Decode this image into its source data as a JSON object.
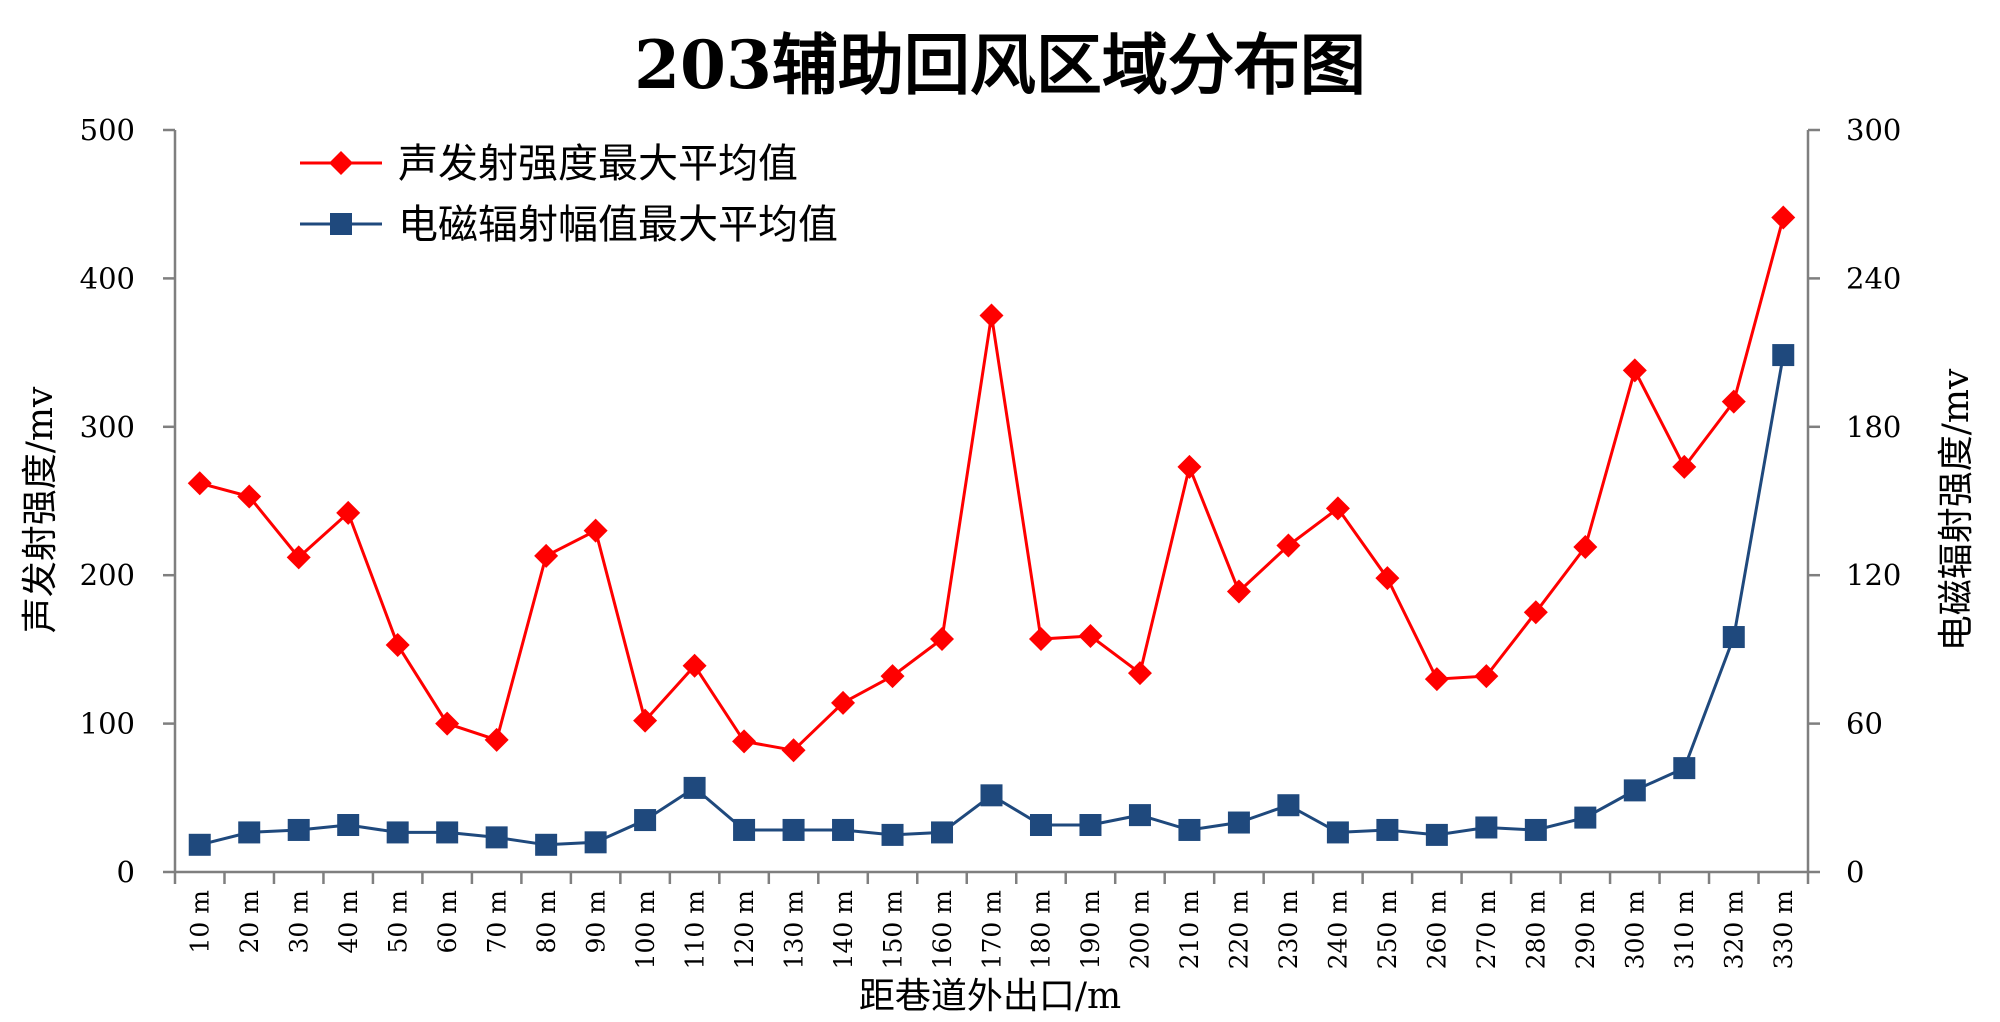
{
  "chart_data": {
    "type": "line",
    "title": "203辅助回风区域分布图",
    "xlabel": "距巷道外出口/m",
    "ylabel": "声发射强度/mv",
    "y2label": "电磁辐射强度/mv",
    "categories": [
      "10 m",
      "20 m",
      "30 m",
      "40 m",
      "50 m",
      "60 m",
      "70 m",
      "80 m",
      "90 m",
      "100 m",
      "110 m",
      "120 m",
      "130 m",
      "140 m",
      "150 m",
      "160 m",
      "170 m",
      "180 m",
      "190 m",
      "200 m",
      "210 m",
      "220 m",
      "230 m",
      "240 m",
      "250 m",
      "260 m",
      "270 m",
      "280 m",
      "290 m",
      "300 m",
      "310 m",
      "320 m",
      "330 m"
    ],
    "ylim": [
      0,
      500
    ],
    "yticks": [
      "0",
      "100",
      "200",
      "300",
      "400",
      "500"
    ],
    "y2lim": [
      0,
      300
    ],
    "y2ticks": [
      "0",
      "60",
      "120",
      "180",
      "240",
      "300"
    ],
    "grid": false,
    "legend_position": "top-left",
    "series": [
      {
        "name": "声发射强度最大平均值",
        "axis": "left",
        "marker": "diamond",
        "color": "#ff0000",
        "values": [
          262,
          253,
          212,
          242,
          153,
          100,
          89,
          213,
          230,
          102,
          139,
          88,
          82,
          114,
          132,
          157,
          375,
          157,
          159,
          134,
          273,
          189,
          220,
          245,
          198,
          130,
          132,
          175,
          219,
          338,
          273,
          317,
          441
        ]
      },
      {
        "name": "电磁辐射幅值最大平均值",
        "axis": "right",
        "marker": "square",
        "color": "#1f497d",
        "values": [
          11,
          16,
          17,
          19,
          16,
          16,
          14,
          11,
          12,
          21,
          34,
          17,
          17,
          17,
          15,
          16,
          31,
          19,
          19,
          23,
          17,
          20,
          27,
          16,
          17,
          15,
          18,
          17,
          22,
          33,
          42,
          95,
          209
        ]
      }
    ]
  }
}
